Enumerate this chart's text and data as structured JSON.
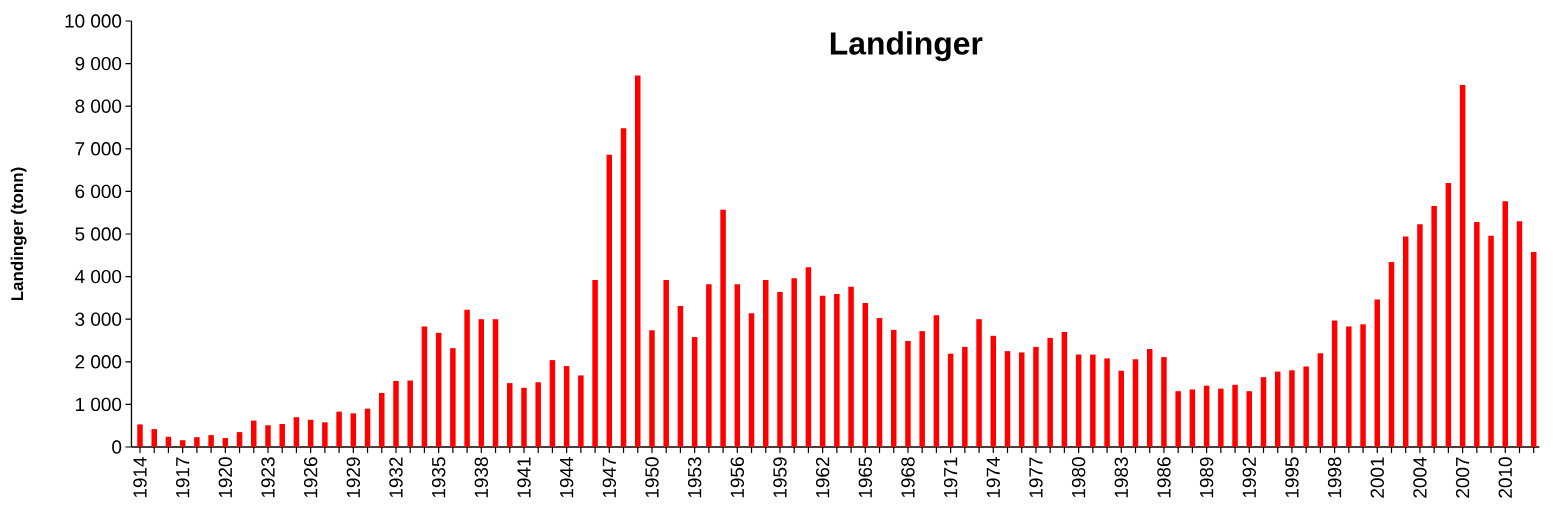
{
  "chart_data": {
    "type": "bar",
    "title": "Landinger",
    "ylabel": "Landinger (tonn)",
    "color": "#ff0000",
    "categories": [
      "1914",
      null,
      null,
      "1917",
      null,
      null,
      "1920",
      null,
      null,
      "1923",
      null,
      null,
      "1926",
      null,
      null,
      "1929",
      null,
      null,
      "1932",
      null,
      null,
      "1935",
      null,
      null,
      "1938",
      null,
      null,
      "1941",
      null,
      null,
      "1944",
      null,
      null,
      "1947",
      null,
      null,
      "1950",
      null,
      null,
      "1953",
      null,
      null,
      "1956",
      null,
      null,
      "1959",
      null,
      null,
      "1962",
      null,
      null,
      "1965",
      null,
      null,
      "1968",
      null,
      null,
      "1971",
      null,
      null,
      "1974",
      null,
      null,
      "1977",
      null,
      null,
      "1980",
      null,
      null,
      "1983",
      null,
      null,
      "1986",
      null,
      null,
      "1989",
      null,
      null,
      "1992",
      null,
      null,
      "1995",
      null,
      null,
      "1998",
      null,
      null,
      "2001",
      null,
      null,
      "2004",
      null,
      null,
      "2007",
      null,
      null,
      "2010",
      null,
      null
    ],
    "values": [
      530,
      420,
      240,
      160,
      230,
      280,
      210,
      350,
      620,
      510,
      540,
      700,
      640,
      580,
      830,
      790,
      900,
      1270,
      1550,
      1560,
      2830,
      2680,
      2320,
      3220,
      3000,
      3000,
      1500,
      1390,
      1520,
      2040,
      1900,
      1680,
      3920,
      6860,
      7480,
      8720,
      2740,
      3920,
      3310,
      2580,
      3820,
      5570,
      3820,
      3140,
      3920,
      3640,
      3960,
      4220,
      3550,
      3590,
      3760,
      3380,
      3030,
      2750,
      2490,
      2720,
      3090,
      2190,
      2350,
      3000,
      2610,
      2250,
      2220,
      2350,
      2560,
      2700,
      2170,
      2170,
      2080,
      1790,
      2060,
      2300,
      2110,
      1310,
      1350,
      1440,
      1370,
      1460,
      1310,
      1640,
      1770,
      1800,
      1890,
      2200,
      2970,
      2830,
      2880,
      3460,
      4340,
      4940,
      5230,
      5660,
      6200,
      8500,
      5280,
      4960,
      5770,
      5300,
      4580
    ],
    "ylim": [
      0,
      10000
    ],
    "yticks": [
      0,
      {
        "value": 1000,
        "label": "1 000"
      },
      {
        "value": 2000,
        "label": "2 000"
      },
      {
        "value": 3000,
        "label": "3 000"
      },
      {
        "value": 4000,
        "label": "4 000"
      },
      {
        "value": 5000,
        "label": "5 000"
      },
      {
        "value": 6000,
        "label": "6 000"
      },
      {
        "value": 7000,
        "label": "7 000"
      },
      {
        "value": 8000,
        "label": "8 000"
      },
      {
        "value": 9000,
        "label": "9 000"
      },
      {
        "value": 10000,
        "label": "10 000"
      }
    ]
  }
}
